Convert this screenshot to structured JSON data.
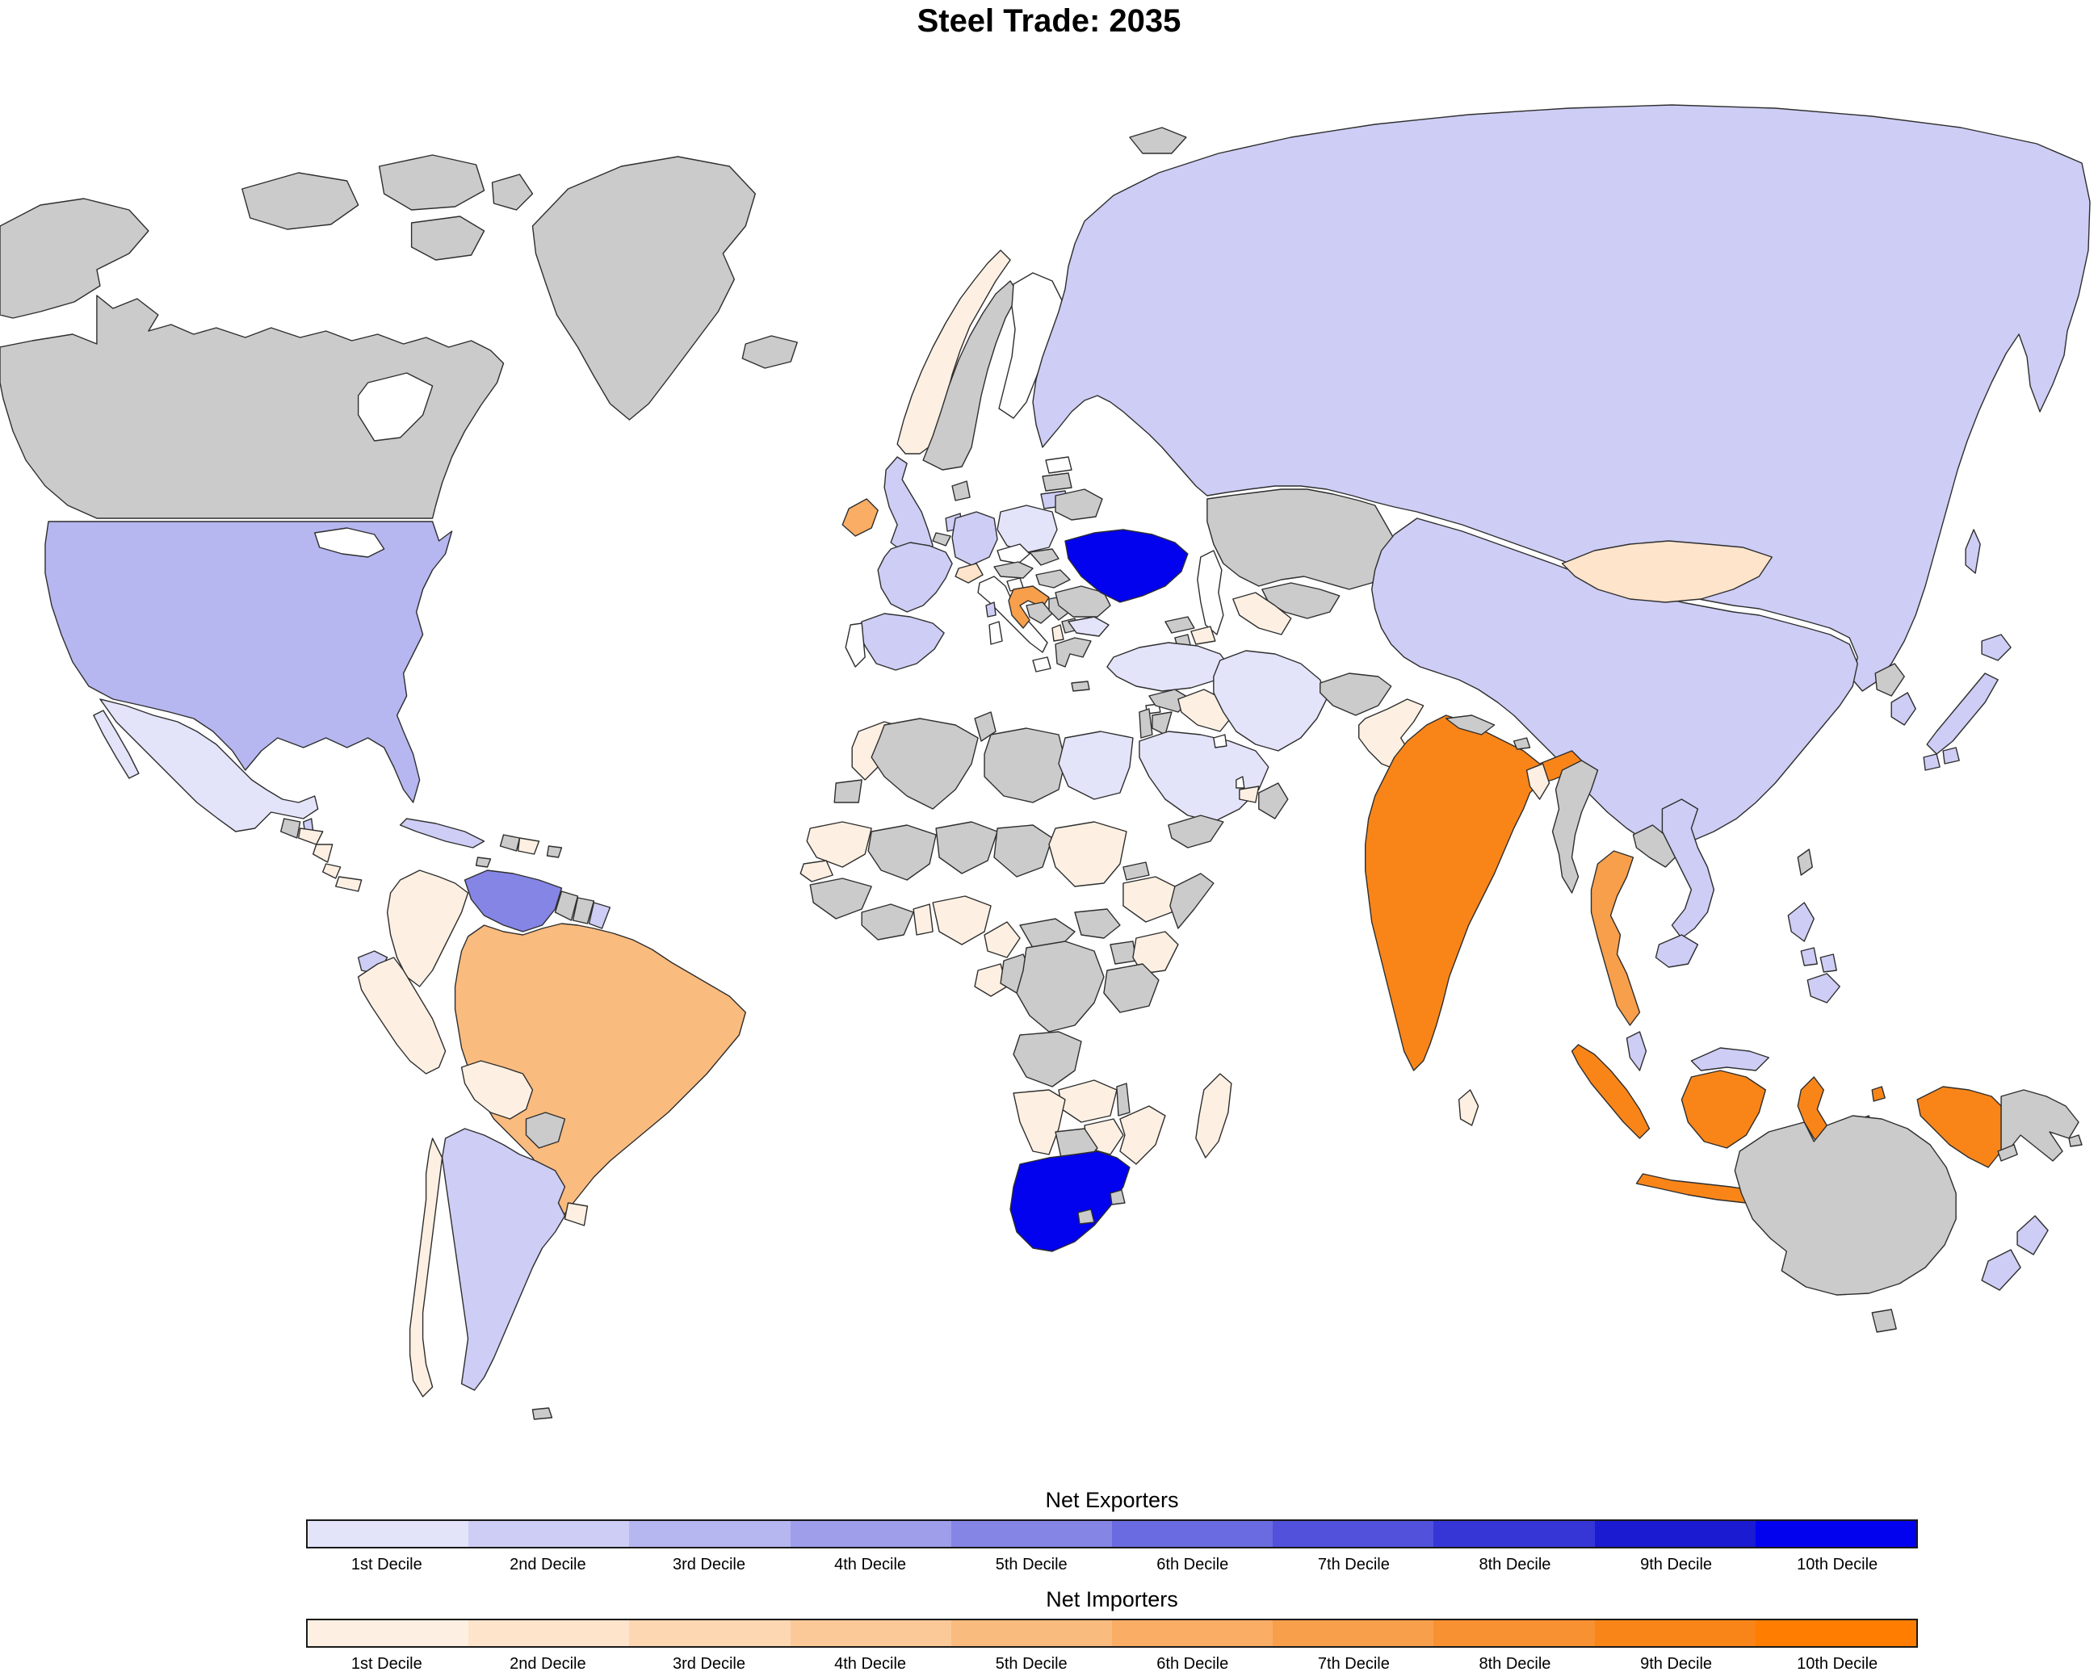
{
  "title": "Steel Trade: 2035",
  "legends": {
    "exporters": {
      "title": "Net Exporters",
      "labels": [
        "1st Decile",
        "2nd Decile",
        "3rd Decile",
        "4th Decile",
        "5th Decile",
        "6th Decile",
        "7th Decile",
        "8th Decile",
        "9th Decile",
        "10th Decile"
      ],
      "colors": [
        "#e3e3fa",
        "#cdcdf5",
        "#b6b6f0",
        "#9e9eeb",
        "#8585e6",
        "#6b6be1",
        "#5151dc",
        "#3636d7",
        "#1b1bd2",
        "#0202ef"
      ]
    },
    "importers": {
      "title": "Net Importers",
      "labels": [
        "1st Decile",
        "2nd Decile",
        "3rd Decile",
        "4th Decile",
        "5th Decile",
        "6th Decile",
        "7th Decile",
        "8th Decile",
        "9th Decile",
        "10th Decile"
      ],
      "colors": [
        "#fdf0e2",
        "#fde4cb",
        "#fcd7b2",
        "#fbc998",
        "#fabb7f",
        "#f9ad65",
        "#f89f4c",
        "#f79132",
        "#f98519",
        "#ff7d01"
      ]
    }
  },
  "map": {
    "no_data_color": "#cbcbcb",
    "blank_color": "#ffffff",
    "ocean_color": "#ffffff",
    "border_color": "#2e2e2e",
    "countries": {
      "united-states": {
        "label": "United States",
        "side": "exporter",
        "decile": 3
      },
      "alaska": {
        "label": "Alaska",
        "side": "none",
        "decile": null
      },
      "canada": {
        "label": "Canada",
        "side": "none",
        "decile": null
      },
      "greenland": {
        "label": "Greenland",
        "side": "none",
        "decile": null
      },
      "mexico": {
        "label": "Mexico",
        "side": "exporter",
        "decile": 1
      },
      "belize": {
        "label": "Belize",
        "side": "exporter",
        "decile": 2
      },
      "guatemala": {
        "label": "Guatemala",
        "side": "none",
        "decile": null
      },
      "honduras": {
        "label": "Honduras",
        "side": "importer",
        "decile": 1
      },
      "nicaragua": {
        "label": "Nicaragua",
        "side": "importer",
        "decile": 1
      },
      "costa-rica": {
        "label": "Costa Rica",
        "side": "importer",
        "decile": 1
      },
      "panama": {
        "label": "Panama",
        "side": "importer",
        "decile": 1
      },
      "cuba": {
        "label": "Cuba",
        "side": "exporter",
        "decile": 2
      },
      "haiti": {
        "label": "Haiti",
        "side": "none",
        "decile": null
      },
      "dominican-republic": {
        "label": "Dominican Republic",
        "side": "importer",
        "decile": 1
      },
      "jamaica": {
        "label": "Jamaica",
        "side": "none",
        "decile": null
      },
      "puerto-rico": {
        "label": "Puerto Rico",
        "side": "none",
        "decile": null
      },
      "colombia": {
        "label": "Colombia",
        "side": "importer",
        "decile": 1
      },
      "venezuela": {
        "label": "Venezuela",
        "side": "exporter",
        "decile": 5
      },
      "guyana": {
        "label": "Guyana",
        "side": "none",
        "decile": null
      },
      "suriname": {
        "label": "Suriname",
        "side": "none",
        "decile": null
      },
      "french-guiana": {
        "label": "French Guiana",
        "side": "exporter",
        "decile": 2
      },
      "brazil": {
        "label": "Brazil",
        "side": "importer",
        "decile": 5
      },
      "ecuador": {
        "label": "Ecuador",
        "side": "exporter",
        "decile": 2
      },
      "peru": {
        "label": "Peru",
        "side": "importer",
        "decile": 1
      },
      "bolivia": {
        "label": "Bolivia",
        "side": "importer",
        "decile": 1
      },
      "paraguay": {
        "label": "Paraguay",
        "side": "none",
        "decile": null
      },
      "uruguay": {
        "label": "Uruguay",
        "side": "importer",
        "decile": 1
      },
      "argentina": {
        "label": "Argentina",
        "side": "exporter",
        "decile": 2
      },
      "chile": {
        "label": "Chile",
        "side": "importer",
        "decile": 1
      },
      "falkland-islands": {
        "label": "Falkland Islands",
        "side": "none",
        "decile": null
      },
      "iceland": {
        "label": "Iceland",
        "side": "none",
        "decile": null
      },
      "norway": {
        "label": "Norway",
        "side": "importer",
        "decile": 1
      },
      "sweden": {
        "label": "Sweden",
        "side": "none",
        "decile": null
      },
      "finland": {
        "label": "Finland",
        "side": "blank",
        "decile": null
      },
      "denmark": {
        "label": "Denmark",
        "side": "none",
        "decile": null
      },
      "estonia": {
        "label": "Estonia",
        "side": "blank",
        "decile": null
      },
      "latvia": {
        "label": "Latvia",
        "side": "none",
        "decile": null
      },
      "lithuania": {
        "label": "Lithuania",
        "side": "exporter",
        "decile": 2
      },
      "united-kingdom": {
        "label": "United Kingdom",
        "side": "exporter",
        "decile": 2
      },
      "ireland": {
        "label": "Ireland",
        "side": "importer",
        "decile": 6
      },
      "netherlands": {
        "label": "Netherlands",
        "side": "exporter",
        "decile": 2
      },
      "belgium": {
        "label": "Belgium",
        "side": "none",
        "decile": null
      },
      "germany": {
        "label": "Germany",
        "side": "exporter",
        "decile": 2
      },
      "poland": {
        "label": "Poland",
        "side": "exporter",
        "decile": 1
      },
      "belarus": {
        "label": "Belarus",
        "side": "none",
        "decile": null
      },
      "czechia": {
        "label": "Czechia",
        "side": "blank",
        "decile": null
      },
      "slovakia": {
        "label": "Slovakia",
        "side": "none",
        "decile": null
      },
      "austria": {
        "label": "Austria",
        "side": "none",
        "decile": null
      },
      "switzerland": {
        "label": "Switzerland",
        "side": "importer",
        "decile": 2
      },
      "france": {
        "label": "France",
        "side": "exporter",
        "decile": 2
      },
      "spain": {
        "label": "Spain",
        "side": "exporter",
        "decile": 2
      },
      "portugal": {
        "label": "Portugal",
        "side": "blank",
        "decile": null
      },
      "italy": {
        "label": "Italy",
        "side": "blank",
        "decile": null
      },
      "slovenia": {
        "label": "Slovenia",
        "side": "blank",
        "decile": null
      },
      "croatia": {
        "label": "Croatia",
        "side": "importer",
        "decile": 7
      },
      "bosnia": {
        "label": "Bosnia and Herzegovina",
        "side": "none",
        "decile": null
      },
      "serbia": {
        "label": "Serbia",
        "side": "none",
        "decile": null
      },
      "albania": {
        "label": "Albania",
        "side": "importer",
        "decile": 1
      },
      "north-macedonia": {
        "label": "North Macedonia",
        "side": "none",
        "decile": null
      },
      "greece": {
        "label": "Greece",
        "side": "none",
        "decile": null
      },
      "bulgaria": {
        "label": "Bulgaria",
        "side": "exporter",
        "decile": 1
      },
      "romania": {
        "label": "Romania",
        "side": "none",
        "decile": null
      },
      "moldova": {
        "label": "Moldova",
        "side": "none",
        "decile": null
      },
      "hungary": {
        "label": "Hungary",
        "side": "none",
        "decile": null
      },
      "ukraine": {
        "label": "Ukraine",
        "side": "exporter",
        "decile": 10
      },
      "russia": {
        "label": "Russia",
        "side": "exporter",
        "decile": 2
      },
      "svalbard": {
        "label": "Svalbard",
        "side": "none",
        "decile": null
      },
      "kazakhstan": {
        "label": "Kazakhstan",
        "side": "none",
        "decile": null
      },
      "uzbekistan": {
        "label": "Uzbekistan",
        "side": "none",
        "decile": null
      },
      "turkmenistan": {
        "label": "Turkmenistan",
        "side": "importer",
        "decile": 1
      },
      "kyrgyzstan": {
        "label": "Kyrgyzstan",
        "side": "none",
        "decile": null
      },
      "tajikistan": {
        "label": "Tajikistan",
        "side": "none",
        "decile": null
      },
      "afghanistan": {
        "label": "Afghanistan",
        "side": "none",
        "decile": null
      },
      "pakistan": {
        "label": "Pakistan",
        "side": "importer",
        "decile": 1
      },
      "india": {
        "label": "India",
        "side": "importer",
        "decile": 9
      },
      "nepal": {
        "label": "Nepal",
        "side": "none",
        "decile": null
      },
      "bhutan": {
        "label": "Bhutan",
        "side": "none",
        "decile": null
      },
      "bangladesh": {
        "label": "Bangladesh",
        "side": "importer",
        "decile": 1
      },
      "sri-lanka": {
        "label": "Sri Lanka",
        "side": "importer",
        "decile": 1
      },
      "myanmar": {
        "label": "Myanmar",
        "side": "none",
        "decile": null
      },
      "thailand": {
        "label": "Thailand",
        "side": "importer",
        "decile": 7
      },
      "laos": {
        "label": "Laos",
        "side": "none",
        "decile": null
      },
      "vietnam": {
        "label": "Vietnam",
        "side": "exporter",
        "decile": 2
      },
      "cambodia": {
        "label": "Cambodia",
        "side": "exporter",
        "decile": 2
      },
      "malaysia": {
        "label": "Malaysia",
        "side": "exporter",
        "decile": 2
      },
      "indonesia": {
        "label": "Indonesia",
        "side": "importer",
        "decile": 9
      },
      "timor-leste": {
        "label": "Timor-Leste",
        "side": "none",
        "decile": null
      },
      "papua-new-guinea": {
        "label": "Papua New Guinea",
        "side": "none",
        "decile": null
      },
      "philippines": {
        "label": "Philippines",
        "side": "exporter",
        "decile": 2
      },
      "taiwan": {
        "label": "Taiwan",
        "side": "none",
        "decile": null
      },
      "china": {
        "label": "China",
        "side": "exporter",
        "decile": 2
      },
      "mongolia": {
        "label": "Mongolia",
        "side": "importer",
        "decile": 2
      },
      "north-korea": {
        "label": "North Korea",
        "side": "none",
        "decile": null
      },
      "south-korea": {
        "label": "South Korea",
        "side": "exporter",
        "decile": 2
      },
      "japan": {
        "label": "Japan",
        "side": "exporter",
        "decile": 2
      },
      "australia": {
        "label": "Australia",
        "side": "none",
        "decile": null
      },
      "new-zealand": {
        "label": "New Zealand",
        "side": "exporter",
        "decile": 2
      },
      "new-caledonia": {
        "label": "New Caledonia",
        "side": "none",
        "decile": null
      },
      "fiji": {
        "label": "Fiji",
        "side": "none",
        "decile": null
      },
      "turkey": {
        "label": "Turkey",
        "side": "exporter",
        "decile": 1
      },
      "cyprus": {
        "label": "Cyprus",
        "side": "blank",
        "decile": null
      },
      "syria": {
        "label": "Syria",
        "side": "none",
        "decile": null
      },
      "israel": {
        "label": "Israel",
        "side": "none",
        "decile": null
      },
      "jordan": {
        "label": "Jordan",
        "side": "none",
        "decile": null
      },
      "iraq": {
        "label": "Iraq",
        "side": "importer",
        "decile": 1
      },
      "saudi-arabia": {
        "label": "Saudi Arabia",
        "side": "exporter",
        "decile": 1
      },
      "yemen": {
        "label": "Yemen",
        "side": "none",
        "decile": null
      },
      "oman": {
        "label": "Oman",
        "side": "none",
        "decile": null
      },
      "united-arab-emirates": {
        "label": "United Arab Emirates",
        "side": "importer",
        "decile": 1
      },
      "kuwait": {
        "label": "Kuwait",
        "side": "blank",
        "decile": null
      },
      "qatar": {
        "label": "Qatar",
        "side": "blank",
        "decile": null
      },
      "iran": {
        "label": "Iran",
        "side": "exporter",
        "decile": 1
      },
      "georgia": {
        "label": "Georgia",
        "side": "none",
        "decile": null
      },
      "armenia": {
        "label": "Armenia",
        "side": "none",
        "decile": null
      },
      "azerbaijan": {
        "label": "Azerbaijan",
        "side": "importer",
        "decile": 1
      },
      "morocco": {
        "label": "Morocco",
        "side": "importer",
        "decile": 1
      },
      "western-sahara": {
        "label": "Western Sahara",
        "side": "none",
        "decile": null
      },
      "algeria": {
        "label": "Algeria",
        "side": "none",
        "decile": null
      },
      "tunisia": {
        "label": "Tunisia",
        "side": "none",
        "decile": null
      },
      "libya": {
        "label": "Libya",
        "side": "none",
        "decile": null
      },
      "egypt": {
        "label": "Egypt",
        "side": "exporter",
        "decile": 1
      },
      "mauritania": {
        "label": "Mauritania",
        "side": "importer",
        "decile": 1
      },
      "mali": {
        "label": "Mali",
        "side": "none",
        "decile": null
      },
      "niger": {
        "label": "Niger",
        "side": "none",
        "decile": null
      },
      "chad": {
        "label": "Chad",
        "side": "none",
        "decile": null
      },
      "sudan": {
        "label": "Sudan",
        "side": "importer",
        "decile": 1
      },
      "eritrea": {
        "label": "Eritrea",
        "side": "none",
        "decile": null
      },
      "ethiopia": {
        "label": "Ethiopia",
        "side": "importer",
        "decile": 1
      },
      "somalia": {
        "label": "Somalia",
        "side": "none",
        "decile": null
      },
      "senegal": {
        "label": "Senegal",
        "side": "importer",
        "decile": 1
      },
      "guinea-region": {
        "label": "Guinea region",
        "side": "none",
        "decile": null
      },
      "ghana-region": {
        "label": "Ghana / Côte d'Ivoire",
        "side": "none",
        "decile": null
      },
      "togo-benin": {
        "label": "Togo / Benin",
        "side": "importer",
        "decile": 1
      },
      "nigeria": {
        "label": "Nigeria",
        "side": "importer",
        "decile": 1
      },
      "cameroon": {
        "label": "Cameroon",
        "side": "importer",
        "decile": 1
      },
      "central-african-republic": {
        "label": "Central African Republic",
        "side": "none",
        "decile": null
      },
      "south-sudan": {
        "label": "South Sudan",
        "side": "none",
        "decile": null
      },
      "uganda": {
        "label": "Uganda",
        "side": "none",
        "decile": null
      },
      "kenya": {
        "label": "Kenya",
        "side": "importer",
        "decile": 1
      },
      "gabon": {
        "label": "Gabon",
        "side": "importer",
        "decile": 1
      },
      "congo": {
        "label": "Congo",
        "side": "none",
        "decile": null
      },
      "dr-congo": {
        "label": "DR Congo",
        "side": "none",
        "decile": null
      },
      "tanzania": {
        "label": "Tanzania",
        "side": "none",
        "decile": null
      },
      "angola": {
        "label": "Angola",
        "side": "none",
        "decile": null
      },
      "zambia": {
        "label": "Zambia",
        "side": "importer",
        "decile": 1
      },
      "malawi": {
        "label": "Malawi",
        "side": "none",
        "decile": null
      },
      "mozambique": {
        "label": "Mozambique",
        "side": "importer",
        "decile": 1
      },
      "zimbabwe": {
        "label": "Zimbabwe",
        "side": "importer",
        "decile": 1
      },
      "namibia": {
        "label": "Namibia",
        "side": "importer",
        "decile": 1
      },
      "botswana": {
        "label": "Botswana",
        "side": "none",
        "decile": null
      },
      "south-africa": {
        "label": "South Africa",
        "side": "exporter",
        "decile": 10
      },
      "lesotho": {
        "label": "Lesotho",
        "side": "none",
        "decile": null
      },
      "eswatini": {
        "label": "Eswatini",
        "side": "none",
        "decile": null
      },
      "madagascar": {
        "label": "Madagascar",
        "side": "importer",
        "decile": 1
      },
      "great-lakes": {
        "label": "Great Lakes",
        "side": "water",
        "decile": null
      },
      "hudson-bay": {
        "label": "Hudson Bay",
        "side": "water",
        "decile": null
      },
      "caspian-sea": {
        "label": "Caspian Sea",
        "side": "water",
        "decile": null
      }
    }
  }
}
